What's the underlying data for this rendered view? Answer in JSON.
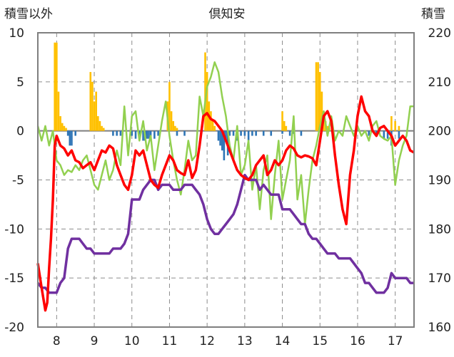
{
  "chart_data": {
    "type": "line",
    "title": "倶知安",
    "ylabel_left": "積雪以外",
    "ylabel_right": "積雪",
    "xlabel": "",
    "ylim_left": [
      -20,
      10
    ],
    "ylim_right": [
      160,
      220
    ],
    "yticks_left": [
      10,
      5,
      0,
      -5,
      -10,
      -15,
      -20
    ],
    "yticks_right": [
      220,
      210,
      200,
      190,
      180,
      170,
      160
    ],
    "xlim": [
      7.5,
      17.5
    ],
    "xticks": [
      8,
      9,
      10,
      11,
      12,
      13,
      14,
      15,
      16,
      17
    ],
    "grid": true,
    "colors": {
      "red": "#ff0000",
      "purple": "#7030a0",
      "green": "#92d050",
      "orange": "#ffc000",
      "blue": "#2e75b6",
      "frame": "#7f7f7f"
    },
    "series": [
      {
        "color": "red",
        "axis": "left",
        "x": [
          7.5,
          7.6,
          7.7,
          7.75,
          7.8,
          7.85,
          7.9,
          7.95,
          8.0,
          8.1,
          8.2,
          8.3,
          8.4,
          8.5,
          8.6,
          8.7,
          8.8,
          8.9,
          9.0,
          9.1,
          9.2,
          9.3,
          9.4,
          9.5,
          9.6,
          9.7,
          9.8,
          9.9,
          10.0,
          10.1,
          10.2,
          10.3,
          10.4,
          10.5,
          10.6,
          10.7,
          10.8,
          10.9,
          11.0,
          11.1,
          11.2,
          11.3,
          11.4,
          11.5,
          11.6,
          11.7,
          11.8,
          11.9,
          12.0,
          12.1,
          12.2,
          12.3,
          12.4,
          12.5,
          12.6,
          12.7,
          12.8,
          12.9,
          13.0,
          13.1,
          13.2,
          13.3,
          13.4,
          13.5,
          13.6,
          13.7,
          13.8,
          13.9,
          14.0,
          14.1,
          14.2,
          14.3,
          14.4,
          14.5,
          14.6,
          14.7,
          14.8,
          14.9,
          15.0,
          15.1,
          15.2,
          15.3,
          15.4,
          15.5,
          15.6,
          15.7,
          15.8,
          15.9,
          16.0,
          16.1,
          16.2,
          16.3,
          16.4,
          16.5,
          16.6,
          16.7,
          16.8,
          16.9,
          17.0,
          17.1,
          17.2,
          17.3,
          17.4,
          17.5
        ],
        "y": [
          -13.5,
          -16.0,
          -18.3,
          -17.5,
          -14.0,
          -11.0,
          -7.0,
          -1.5,
          -0.5,
          -1.5,
          -1.8,
          -2.5,
          -2.0,
          -3.0,
          -3.2,
          -3.8,
          -3.5,
          -3.2,
          -4.0,
          -3.0,
          -2.0,
          -2.2,
          -1.5,
          -1.8,
          -3.5,
          -4.5,
          -5.5,
          -6.0,
          -4.5,
          -2.0,
          -2.5,
          -2.0,
          -3.5,
          -5.0,
          -5.5,
          -5.8,
          -4.5,
          -3.5,
          -2.5,
          -3.0,
          -4.0,
          -4.3,
          -4.5,
          -3.0,
          -4.8,
          -4.0,
          -1.5,
          1.5,
          1.8,
          1.2,
          1.0,
          0.5,
          0.0,
          -1.0,
          -2.0,
          -3.0,
          -4.0,
          -4.5,
          -4.8,
          -5.0,
          -4.5,
          -3.5,
          -3.0,
          -2.5,
          -4.5,
          -4.0,
          -3.0,
          -3.5,
          -3.0,
          -2.0,
          -1.5,
          -1.8,
          -2.5,
          -2.7,
          -2.5,
          -2.6,
          -2.8,
          -3.5,
          -1.0,
          1.5,
          2.0,
          1.0,
          -2.5,
          -5.5,
          -8.0,
          -9.5,
          -4.5,
          -2.0,
          1.5,
          3.5,
          2.0,
          1.5,
          0.0,
          -0.5,
          0.3,
          0.5,
          0.0,
          -0.5,
          -1.5,
          -1.0,
          -0.5,
          -1.0,
          -2.0,
          -2.2
        ]
      },
      {
        "color": "purple",
        "axis": "right",
        "x": [
          7.5,
          7.6,
          7.7,
          7.8,
          7.9,
          8.0,
          8.1,
          8.2,
          8.3,
          8.4,
          8.5,
          8.6,
          8.7,
          8.8,
          8.9,
          9.0,
          9.1,
          9.2,
          9.3,
          9.4,
          9.5,
          9.6,
          9.7,
          9.8,
          9.9,
          10.0,
          10.1,
          10.2,
          10.3,
          10.4,
          10.5,
          10.6,
          10.7,
          10.8,
          10.9,
          11.0,
          11.1,
          11.2,
          11.3,
          11.4,
          11.5,
          11.6,
          11.7,
          11.8,
          11.9,
          12.0,
          12.1,
          12.2,
          12.3,
          12.4,
          12.5,
          12.6,
          12.7,
          12.8,
          12.9,
          13.0,
          13.1,
          13.2,
          13.3,
          13.4,
          13.5,
          13.6,
          13.7,
          13.8,
          13.9,
          14.0,
          14.1,
          14.2,
          14.3,
          14.4,
          14.5,
          14.6,
          14.7,
          14.8,
          14.9,
          15.0,
          15.1,
          15.2,
          15.3,
          15.4,
          15.5,
          15.6,
          15.7,
          15.8,
          15.9,
          16.0,
          16.1,
          16.2,
          16.3,
          16.4,
          16.5,
          16.6,
          16.7,
          16.8,
          16.9,
          17.0,
          17.1,
          17.2,
          17.3,
          17.4,
          17.5
        ],
        "y": [
          169,
          168,
          168,
          167,
          167,
          167,
          169,
          170,
          176,
          178,
          178,
          178,
          177,
          176,
          176,
          175,
          175,
          175,
          175,
          175,
          176,
          176,
          176,
          177,
          179,
          186,
          186,
          186,
          188,
          189,
          190,
          190,
          188,
          189,
          189,
          189,
          188,
          188,
          188,
          189,
          189,
          189,
          188,
          187,
          185,
          182,
          180,
          179,
          179,
          180,
          181,
          182,
          183,
          185,
          188,
          191,
          190,
          190,
          190,
          188,
          189,
          188,
          187,
          187,
          187,
          184,
          184,
          184,
          183,
          182,
          181,
          181,
          179,
          178,
          178,
          177,
          176,
          175,
          175,
          175,
          174,
          174,
          174,
          174,
          173,
          172,
          171,
          169,
          169,
          168,
          167,
          167,
          167,
          168,
          171,
          170,
          170,
          170,
          170,
          169,
          169
        ]
      },
      {
        "color": "green",
        "axis": "left",
        "x": [
          7.5,
          7.6,
          7.7,
          7.8,
          7.9,
          8.0,
          8.1,
          8.2,
          8.3,
          8.4,
          8.5,
          8.6,
          8.7,
          8.8,
          8.9,
          9.0,
          9.1,
          9.2,
          9.3,
          9.4,
          9.5,
          9.6,
          9.7,
          9.8,
          9.9,
          10.0,
          10.1,
          10.2,
          10.3,
          10.4,
          10.5,
          10.6,
          10.7,
          10.8,
          10.9,
          11.0,
          11.1,
          11.2,
          11.3,
          11.4,
          11.5,
          11.6,
          11.7,
          11.8,
          11.9,
          12.0,
          12.1,
          12.2,
          12.3,
          12.4,
          12.5,
          12.6,
          12.7,
          12.8,
          12.9,
          13.0,
          13.1,
          13.2,
          13.3,
          13.4,
          13.5,
          13.6,
          13.7,
          13.8,
          13.9,
          14.0,
          14.1,
          14.2,
          14.3,
          14.4,
          14.5,
          14.6,
          14.7,
          14.8,
          14.9,
          15.0,
          15.1,
          15.2,
          15.3,
          15.4,
          15.5,
          15.6,
          15.7,
          15.8,
          15.9,
          16.0,
          16.1,
          16.2,
          16.3,
          16.4,
          16.5,
          16.6,
          16.7,
          16.8,
          16.9,
          17.0,
          17.1,
          17.2,
          17.3,
          17.4,
          17.5
        ],
        "y": [
          0.5,
          -1.0,
          0.5,
          -1.5,
          0.0,
          -3.0,
          -3.5,
          -4.5,
          -4.0,
          -4.2,
          -3.5,
          -4.0,
          -3.0,
          -2.5,
          -4.0,
          -5.5,
          -6.0,
          -4.5,
          -3.0,
          -5.0,
          -4.0,
          -2.0,
          -3.5,
          2.5,
          -2.5,
          1.5,
          2.0,
          -1.0,
          1.0,
          -2.0,
          -0.5,
          -4.0,
          -1.5,
          1.0,
          3.0,
          -0.5,
          -3.0,
          -5.0,
          -6.5,
          -4.0,
          -1.0,
          -3.0,
          -2.5,
          3.5,
          1.5,
          4.5,
          5.5,
          7.0,
          6.0,
          3.5,
          1.5,
          -1.5,
          -3.0,
          0.5,
          -4.5,
          -3.5,
          -1.0,
          -6.0,
          -3.5,
          -8.0,
          -4.0,
          -2.5,
          -9.0,
          -4.5,
          -1.0,
          -7.0,
          -5.0,
          -3.0,
          1.5,
          -7.0,
          -4.5,
          -9.5,
          -6.0,
          -3.0,
          -1.5,
          0.5,
          2.0,
          -0.5,
          1.5,
          -1.0,
          0.0,
          -0.5,
          1.5,
          0.5,
          -0.5,
          0.5,
          -0.5,
          0.0,
          -1.0,
          0.5,
          1.0,
          -0.5,
          -0.8,
          -1.0,
          -0.5,
          -5.5,
          -3.0,
          -1.5,
          -0.5,
          2.5,
          2.5
        ]
      },
      {
        "color": "orange",
        "axis": "left",
        "type": "bar",
        "x": [
          7.95,
          8.0,
          8.05,
          8.1,
          8.15,
          8.2,
          8.25,
          8.9,
          8.95,
          9.0,
          9.05,
          9.1,
          9.15,
          9.2,
          9.25,
          10.95,
          11.0,
          11.05,
          11.1,
          11.15,
          11.2,
          11.95,
          12.0,
          12.05,
          12.1,
          12.15,
          12.2,
          14.0,
          14.05,
          14.1,
          14.9,
          14.95,
          15.0,
          15.05,
          15.1,
          15.15,
          15.2,
          15.25,
          16.9,
          17.0,
          17.1
        ],
        "y": [
          9.0,
          9.0,
          4.0,
          1.5,
          0.8,
          0.5,
          0.3,
          6.0,
          5.0,
          3.0,
          4.0,
          1.5,
          1.0,
          0.5,
          0.3,
          3.0,
          5.0,
          2.0,
          1.0,
          0.5,
          0.3,
          8.0,
          6.0,
          3.0,
          2.0,
          1.0,
          0.5,
          2.0,
          1.0,
          0.5,
          7.0,
          7.0,
          6.0,
          4.0,
          2.0,
          1.0,
          0.5,
          0.3,
          1.5,
          1.0,
          0.5
        ]
      },
      {
        "color": "blue",
        "axis": "left",
        "type": "bar",
        "x": [
          8.3,
          8.35,
          8.4,
          8.5,
          9.5,
          9.6,
          9.7,
          10.0,
          10.1,
          10.2,
          10.3,
          10.35,
          10.4,
          10.45,
          10.5,
          10.6,
          10.7,
          11.2,
          11.4,
          12.3,
          12.35,
          12.4,
          12.45,
          12.5,
          12.55,
          12.6,
          12.7,
          12.8,
          12.9,
          13.0,
          13.1,
          13.2,
          13.3,
          13.5,
          13.7,
          14.0,
          14.2,
          14.3,
          14.5,
          16.3,
          16.5,
          16.7,
          16.8,
          16.9,
          17.1
        ],
        "y": [
          -0.5,
          -1.5,
          -1.5,
          -0.5,
          -0.5,
          -0.5,
          -0.5,
          -0.5,
          -0.8,
          -1.0,
          -1.0,
          -1.0,
          -0.8,
          -0.8,
          -1.0,
          -0.8,
          -0.5,
          -0.5,
          -0.5,
          -1.0,
          -1.5,
          -2.0,
          -3.0,
          -1.0,
          -2.5,
          -0.5,
          -0.5,
          -1.0,
          -0.5,
          -0.5,
          -1.0,
          -0.5,
          -0.5,
          -0.5,
          -0.5,
          -0.3,
          -0.5,
          -0.3,
          -0.5,
          -0.5,
          -0.5,
          -0.8,
          -0.8,
          -1.5,
          -0.8
        ]
      }
    ]
  }
}
